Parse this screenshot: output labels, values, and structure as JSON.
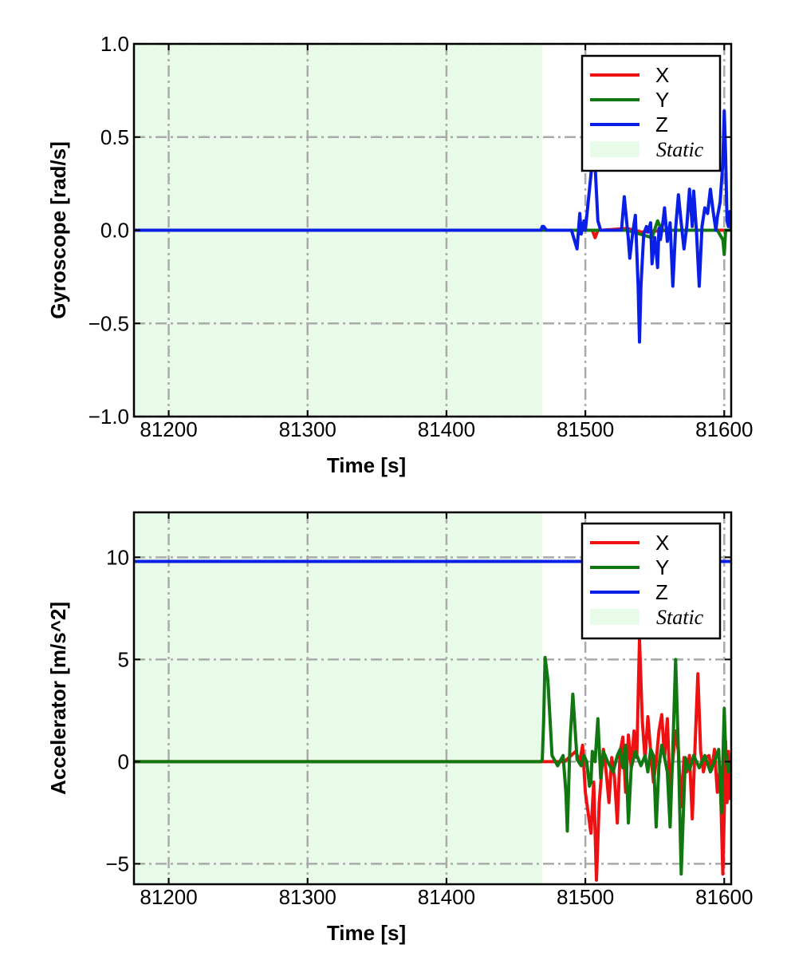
{
  "chart_data": [
    {
      "type": "line",
      "xlabel": "Time [s]",
      "ylabel": "Gyroscope [rad/s]",
      "xlim": [
        81175,
        81605
      ],
      "ylim": [
        -1.0,
        1.0
      ],
      "xticks": [
        81200,
        81300,
        81400,
        81500,
        81600
      ],
      "xtick_labels": [
        "81200",
        "81300",
        "81400",
        "81500",
        "81600"
      ],
      "yticks": [
        1.0,
        0.5,
        0.0,
        -0.5,
        -1.0
      ],
      "ytick_labels": [
        "1.0",
        "0.5",
        "0.0",
        "−0.5",
        "−1.0"
      ],
      "grid": true,
      "legend_position": "top-right",
      "static_region": {
        "label": "Static",
        "x_start": 81175,
        "x_end": 81469,
        "color": "#e8fbe8"
      },
      "series": [
        {
          "name": "X",
          "color": "#ee1111",
          "x": [
            81175,
            81469,
            81500,
            81505,
            81507,
            81509,
            81512,
            81530,
            81540,
            81560,
            81590,
            81605
          ],
          "y": [
            0,
            0,
            0,
            0,
            -0.04,
            0,
            0,
            0.01,
            -0.01,
            0,
            0,
            0
          ]
        },
        {
          "name": "Y",
          "color": "#117711",
          "x": [
            81175,
            81469,
            81500,
            81530,
            81548,
            81552,
            81555,
            81570,
            81595,
            81599,
            81600,
            81601,
            81603,
            81605
          ],
          "y": [
            0,
            0,
            0,
            0,
            -0.04,
            0.05,
            0,
            0,
            0,
            -0.05,
            -0.13,
            0,
            0,
            0
          ]
        },
        {
          "name": "Z",
          "color": "#0a1fe6",
          "x": [
            81175,
            81468,
            81469,
            81470,
            81472,
            81490,
            81494,
            81496,
            81497,
            81499,
            81500,
            81505,
            81507,
            81509,
            81511,
            81513,
            81520,
            81526,
            81528,
            81531,
            81532,
            81534,
            81536,
            81538,
            81539,
            81540,
            81542,
            81544,
            81545,
            81547,
            81548,
            81550,
            81552,
            81553,
            81554,
            81556,
            81557,
            81559,
            81561,
            81563,
            81565,
            81567,
            81569,
            81571,
            81573,
            81575,
            81577,
            81578,
            81580,
            81582,
            81584,
            81586,
            81588,
            81590,
            81592,
            81594,
            81595,
            81597,
            81599,
            81600,
            81601,
            81602,
            81603,
            81604,
            81605
          ],
          "y": [
            0,
            0,
            0.02,
            0.02,
            0,
            0,
            -0.1,
            0.09,
            -0.02,
            0.05,
            0,
            0.37,
            0.35,
            0.05,
            0,
            0,
            0,
            0,
            0.18,
            -0.05,
            -0.15,
            -0.02,
            0.08,
            -0.3,
            -0.6,
            -0.3,
            -0.02,
            0.02,
            -0.01,
            0.04,
            -0.18,
            -0.04,
            -0.2,
            0.01,
            -0.05,
            0.05,
            0.12,
            -0.06,
            0.04,
            -0.3,
            0.01,
            0.19,
            0.04,
            -0.1,
            0.02,
            0.22,
            0.02,
            0.21,
            -0.01,
            -0.3,
            0.02,
            0.12,
            0.09,
            0.22,
            0.1,
            0,
            0.07,
            0.15,
            0.36,
            0.64,
            0.4,
            0.05,
            0.02,
            0.1,
            0
          ]
        }
      ]
    },
    {
      "type": "line",
      "xlabel": "Time [s]",
      "ylabel": "Accelerator [m/s^2]",
      "xlim": [
        81175,
        81605
      ],
      "ylim": [
        -6,
        12.2
      ],
      "xticks": [
        81200,
        81300,
        81400,
        81500,
        81600
      ],
      "xtick_labels": [
        "81200",
        "81300",
        "81400",
        "81500",
        "81600"
      ],
      "yticks": [
        10,
        5,
        0,
        -5
      ],
      "ytick_labels": [
        "10",
        "5",
        "0",
        "−5"
      ],
      "grid": true,
      "legend_position": "top-right",
      "static_region": {
        "label": "Static",
        "x_start": 81175,
        "x_end": 81469,
        "color": "#e8fbe8"
      },
      "series": [
        {
          "name": "X",
          "color": "#ee1111",
          "x": [
            81175,
            81469,
            81485,
            81493,
            81496,
            81498,
            81500,
            81504,
            81506,
            81508,
            81510,
            81513,
            81515,
            81517,
            81519,
            81521,
            81523,
            81525,
            81527,
            81529,
            81531,
            81533,
            81535,
            81537,
            81539,
            81541,
            81543,
            81545,
            81547,
            81549,
            81551,
            81553,
            81555,
            81557,
            81559,
            81561,
            81563,
            81565,
            81567,
            81569,
            81571,
            81573,
            81575,
            81577,
            81579,
            81581,
            81583,
            81585,
            81587,
            81589,
            81591,
            81593,
            81595,
            81597,
            81598,
            81599,
            81600,
            81601,
            81602,
            81603,
            81604,
            81605
          ],
          "y": [
            0,
            0,
            0,
            0.5,
            0,
            0.8,
            -1.5,
            -3.5,
            -1,
            -5.8,
            -2,
            0.6,
            -0.5,
            -2,
            0.2,
            -0.8,
            -3,
            0.5,
            1.2,
            -1.5,
            1.3,
            -0.3,
            1.5,
            0.2,
            6,
            2,
            0.1,
            2.2,
            0.5,
            -1,
            0,
            1.5,
            2.3,
            0.2,
            2.1,
            -1.5,
            0.1,
            1.5,
            0.5,
            -2.2,
            0.2,
            -0.5,
            0.3,
            -2.8,
            0.8,
            4.3,
            0.5,
            -0.5,
            0.2,
            0.3,
            -0.4,
            0.6,
            -1.5,
            -0.3,
            -3,
            -5.5,
            -2.5,
            1,
            -2,
            0.5,
            -1.8,
            0
          ]
        },
        {
          "name": "Y",
          "color": "#117711",
          "x": [
            81175,
            81468,
            81469,
            81470,
            81471,
            81473,
            81476,
            81480,
            81484,
            81486,
            81487,
            81489,
            81491,
            81494,
            81497,
            81499,
            81501,
            81503,
            81504,
            81505,
            81507,
            81509,
            81511,
            81513,
            81516,
            81520,
            81523,
            81525,
            81527,
            81529,
            81531,
            81533,
            81536,
            81540,
            81543,
            81545,
            81547,
            81549,
            81551,
            81553,
            81555,
            81557,
            81559,
            81561,
            81563,
            81565,
            81567,
            81569,
            81572,
            81575,
            81578,
            81582,
            81586,
            81590,
            81594,
            81596,
            81598,
            81599,
            81600,
            81601,
            81603,
            81605
          ],
          "y": [
            0,
            0,
            0.1,
            2,
            5.1,
            4,
            0.3,
            -0.2,
            0.3,
            -1.5,
            -3.4,
            1,
            3.3,
            0.1,
            -0.2,
            0.3,
            0,
            -1.2,
            -1,
            0.5,
            0,
            2.1,
            -0.8,
            0.5,
            0,
            -0.5,
            0.3,
            0.6,
            -0.3,
            0.8,
            -3,
            -0.3,
            0.5,
            -0.2,
            0.3,
            -0.5,
            0.6,
            0.3,
            -3.2,
            -0.2,
            0.8,
            0.2,
            -0.5,
            -3.2,
            0.6,
            5,
            0.5,
            -5.5,
            0.2,
            -0.4,
            0.3,
            -0.3,
            0.3,
            -0.5,
            0.2,
            0.6,
            -2.5,
            0,
            2.6,
            0.5,
            -0.5,
            0
          ]
        },
        {
          "name": "Z",
          "color": "#0a1fe6",
          "x": [
            81175,
            81605
          ],
          "y": [
            9.8,
            9.8
          ]
        }
      ]
    }
  ]
}
